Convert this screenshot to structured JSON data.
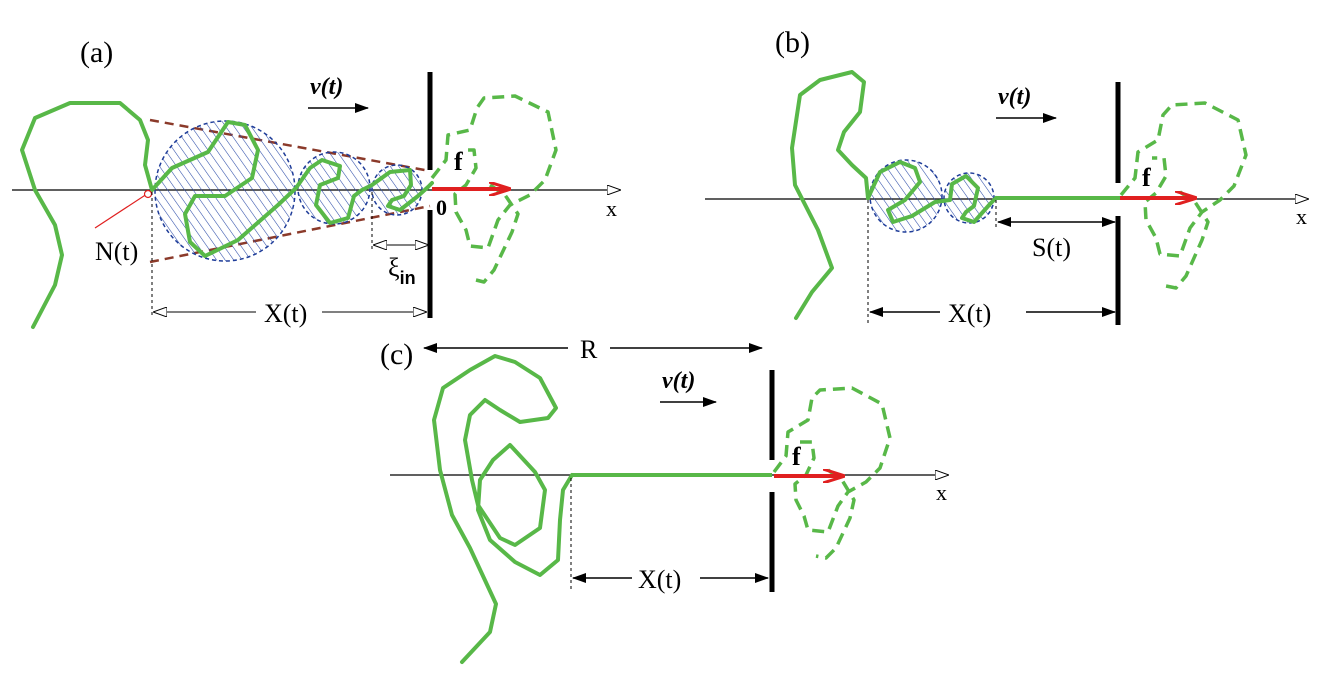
{
  "colors": {
    "chain": "#58b848",
    "force": "#e02020",
    "blob_stroke": "#1f3d99",
    "cone": "#8b3a2a",
    "axis": "#000000"
  },
  "panel_a": {
    "label": "(a)",
    "velocity": "v(t)",
    "force": "f",
    "origin": "0",
    "axis": "x",
    "n_label": "N(t)",
    "x_label": "X(t)",
    "xi": "ξ",
    "xi_sub": "in"
  },
  "panel_b": {
    "label": "(b)",
    "velocity": "v(t)",
    "force": "f",
    "axis": "x",
    "s_label": "S(t)",
    "x_label": "X(t)"
  },
  "panel_c": {
    "label": "(c)",
    "r_label": "R",
    "velocity": "v(t)",
    "force": "f",
    "axis": "x",
    "x_label": "X(t)"
  }
}
